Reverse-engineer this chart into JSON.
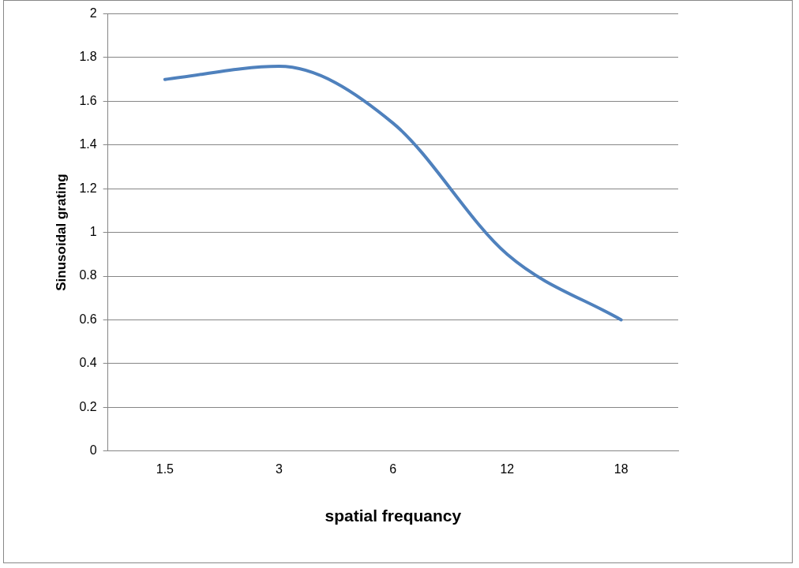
{
  "chart_data": {
    "type": "line",
    "xlabel": "spatial frequancy",
    "ylabel": "Sinusoidal grating",
    "categories": [
      "1.5",
      "3",
      "6",
      "12",
      "18"
    ],
    "values": [
      1.7,
      1.76,
      1.5,
      0.9,
      0.6
    ],
    "color": "#4f81bd",
    "ylim": [
      0,
      2
    ],
    "yticks": [
      0,
      0.2,
      0.4,
      0.6,
      0.8,
      1,
      1.2,
      1.4,
      1.6,
      1.8,
      2
    ],
    "grid": "y",
    "marker": "none",
    "line_style": "solid"
  }
}
